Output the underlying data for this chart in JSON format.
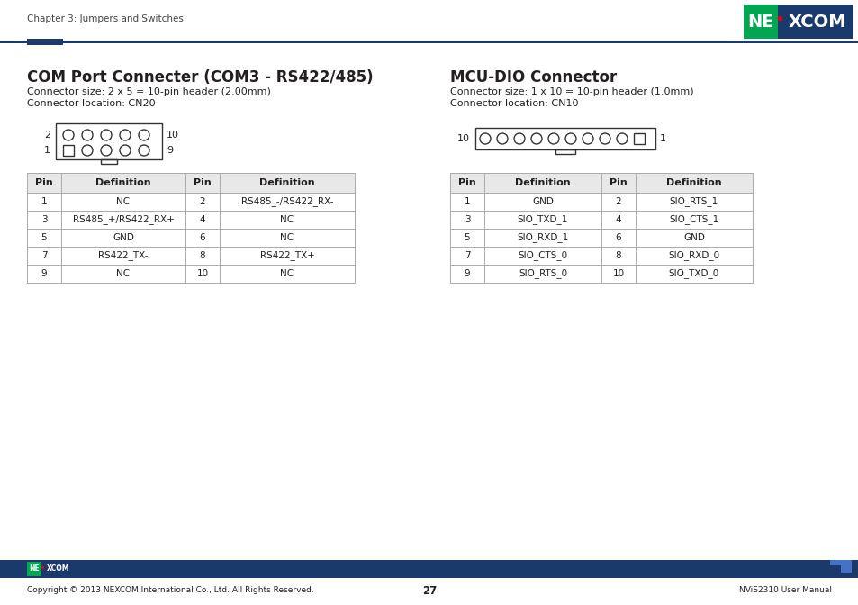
{
  "bg_color": "#ffffff",
  "nexcom_green": "#00a651",
  "nexcom_blue": "#1a3a6b",
  "nexcom_red": "#e3001b",
  "text_color": "#231f20",
  "table_border": "#aaaaaa",
  "table_header_bg": "#e8e8e8",
  "header_text": "Chapter 3: Jumpers and Switches",
  "footer_text_left": "Copyright © 2013 NEXCOM International Co., Ltd. All Rights Reserved.",
  "footer_text_center": "27",
  "footer_text_right": "NViS2310 User Manual",
  "left_title": "COM Port Connecter (COM3 - RS422/485)",
  "left_sub1": "Connector size: 2 x 5 = 10-pin header (2.00mm)",
  "left_sub2": "Connector location: CN20",
  "right_title": "MCU-DIO Connector",
  "right_sub1": "Connector size: 1 x 10 = 10-pin header (1.0mm)",
  "right_sub2": "Connector location: CN10",
  "left_table": {
    "headers": [
      "Pin",
      "Definition",
      "Pin",
      "Definition"
    ],
    "rows": [
      [
        "1",
        "NC",
        "2",
        "RS485_-/RS422_RX-"
      ],
      [
        "3",
        "RS485_+/RS422_RX+",
        "4",
        "NC"
      ],
      [
        "5",
        "GND",
        "6",
        "NC"
      ],
      [
        "7",
        "RS422_TX-",
        "8",
        "RS422_TX+"
      ],
      [
        "9",
        "NC",
        "10",
        "NC"
      ]
    ]
  },
  "right_table": {
    "headers": [
      "Pin",
      "Definition",
      "Pin",
      "Definition"
    ],
    "rows": [
      [
        "1",
        "GND",
        "2",
        "SIO_RTS_1"
      ],
      [
        "3",
        "SIO_TXD_1",
        "4",
        "SIO_CTS_1"
      ],
      [
        "5",
        "SIO_RXD_1",
        "6",
        "GND"
      ],
      [
        "7",
        "SIO_CTS_0",
        "8",
        "SIO_RXD_0"
      ],
      [
        "9",
        "SIO_RTS_0",
        "10",
        "SIO_TXD_0"
      ]
    ]
  }
}
